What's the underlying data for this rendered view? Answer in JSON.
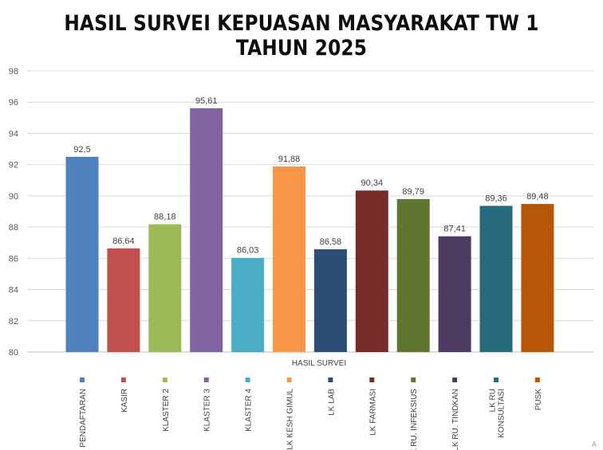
{
  "title": "HASIL SURVEI KEPUASAN MASYARAKAT TW 1 TAHUN 2025",
  "chart_data": {
    "type": "bar",
    "title": "HASIL SURVEI KEPUASAN MASYARAKAT TW 1 TAHUN 2025",
    "xlabel": "HASIL SURVEI",
    "ylabel": "",
    "ylim": [
      80,
      98
    ],
    "y_ticks": [
      "80",
      "82",
      "84",
      "86",
      "88",
      "90",
      "92",
      "94",
      "96",
      "98"
    ],
    "grid": true,
    "legend": "bottom",
    "categories": [
      "PENDAFTARAN",
      "KASIR",
      "KLASTER 2",
      "KLASTER 3",
      "KLASTER 4",
      "LK KESH GIMUL",
      "LK LAB",
      "LK FARMASI",
      "LK RU. INFEKSIUS",
      "LK RU. TINDKAN",
      "LK RU KONSULTASI",
      "PUSK"
    ],
    "values": [
      92.5,
      86.64,
      88.18,
      95.61,
      86.03,
      91.88,
      86.58,
      90.34,
      89.79,
      87.41,
      89.36,
      89.48
    ],
    "value_labels": [
      "92,5",
      "86,64",
      "88,18",
      "95,61",
      "86,03",
      "91,88",
      "86,58",
      "90,34",
      "89,79",
      "87,41",
      "89,36",
      "89,48"
    ],
    "colors": [
      "#4f81bd",
      "#c0504d",
      "#9bbb59",
      "#8064a2",
      "#4bacc6",
      "#f79646",
      "#2c4d75",
      "#772c2a",
      "#5f7530",
      "#4d3b62",
      "#276a7c",
      "#b65708"
    ],
    "legend_entries": [
      {
        "lines": [
          "PENDAFTARAN"
        ]
      },
      {
        "lines": [
          "KASIR"
        ]
      },
      {
        "lines": [
          "KLASTER 2"
        ]
      },
      {
        "lines": [
          "KLASTER 3"
        ]
      },
      {
        "lines": [
          "KLASTER 4"
        ]
      },
      {
        "lines": [
          "LK KESH GIMUL"
        ]
      },
      {
        "lines": [
          "LK LAB"
        ]
      },
      {
        "lines": [
          "LK FARMASI"
        ]
      },
      {
        "lines": [
          "LK RU. INFEKSIUS"
        ]
      },
      {
        "lines": [
          "LK RU. TINDKAN"
        ]
      },
      {
        "lines": [
          "LK RU",
          "KONSULTASI"
        ]
      },
      {
        "lines": [
          "PUSK"
        ]
      }
    ]
  },
  "corner_mark": "A"
}
